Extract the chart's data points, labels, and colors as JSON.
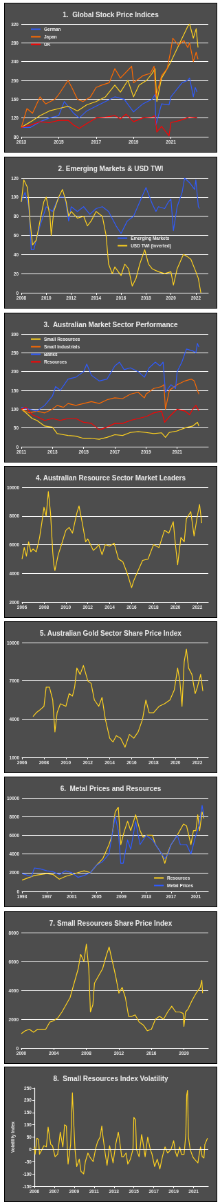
{
  "chart_data": [
    {
      "type": "line",
      "title": "1.  Global Stock Price Indices",
      "xlim": [
        2013,
        2023
      ],
      "xticks": [
        2013,
        2015,
        2017,
        2019,
        2021
      ],
      "ylim": [
        80,
        320
      ],
      "yticks": [
        80,
        120,
        160,
        200,
        240,
        280,
        320
      ],
      "grid": "y",
      "legend": "top left",
      "series": [
        {
          "name": "German",
          "color": "#2f5bff",
          "x": [
            2013,
            2013.5,
            2014,
            2014.5,
            2015,
            2015.3,
            2015.5,
            2015.8,
            2016.1,
            2016.5,
            2017,
            2017.5,
            2018,
            2018.5,
            2019,
            2019.5,
            2020,
            2020.15,
            2020.2,
            2020.5,
            2020.9,
            2021,
            2021.3,
            2021.6,
            2021.9,
            2022,
            2022.2,
            2022.3,
            2022.4
          ],
          "values": [
            100,
            100,
            112,
            120,
            125,
            155,
            145,
            130,
            120,
            135,
            145,
            155,
            165,
            160,
            133,
            150,
            160,
            170,
            105,
            150,
            148,
            165,
            180,
            195,
            200,
            205,
            165,
            185,
            175
          ]
        },
        {
          "color": "#ffd21f",
          "x": [
            2013,
            2013.5,
            2014,
            2014.5,
            2015,
            2015.5,
            2016,
            2016.5,
            2017,
            2017.5,
            2018,
            2018.3,
            2018.7,
            2019,
            2019.3,
            2019.7,
            2020,
            2020.15,
            2020.25,
            2020.5,
            2020.8,
            2021,
            2021.3,
            2021.6,
            2021.9,
            2022,
            2022.2,
            2022.35,
            2022.45
          ],
          "values": [
            100,
            112,
            125,
            135,
            140,
            145,
            135,
            148,
            155,
            165,
            190,
            175,
            200,
            165,
            190,
            200,
            215,
            225,
            155,
            205,
            225,
            240,
            265,
            290,
            315,
            320,
            290,
            310,
            270
          ]
        },
        {
          "name": "Japan",
          "color": "#ff6a00",
          "x": [
            2013,
            2013.3,
            2013.6,
            2014,
            2014.3,
            2014.8,
            2015,
            2015.5,
            2015.7,
            2016,
            2016.3,
            2016.7,
            2017,
            2017.3,
            2017.7,
            2018,
            2018.3,
            2018.9,
            2019,
            2019.5,
            2019.9,
            2020.1,
            2020.2,
            2020.5,
            2020.8,
            2021,
            2021.1,
            2021.4,
            2021.7,
            2021.9,
            2022,
            2022.2,
            2022.35,
            2022.45
          ],
          "values": [
            100,
            140,
            130,
            165,
            150,
            160,
            170,
            200,
            185,
            160,
            155,
            165,
            185,
            190,
            195,
            225,
            205,
            230,
            195,
            210,
            215,
            230,
            165,
            210,
            225,
            265,
            290,
            275,
            285,
            270,
            280,
            240,
            260,
            245
          ]
        },
        {
          "name": "UK",
          "color": "#ff0000",
          "x": [
            2013,
            2013.5,
            2014,
            2014.5,
            2015,
            2015.5,
            2015.8,
            2016.1,
            2016.5,
            2017,
            2017.5,
            2018,
            2018.3,
            2018.6,
            2019,
            2019.5,
            2020,
            2020.15,
            2020.25,
            2020.5,
            2020.9,
            2021,
            2021.5,
            2022,
            2022.4
          ],
          "values": [
            100,
            105,
            112,
            110,
            115,
            115,
            105,
            98,
            108,
            120,
            122,
            125,
            118,
            128,
            112,
            120,
            122,
            125,
            90,
            102,
            82,
            110,
            115,
            122,
            120
          ]
        }
      ]
    },
    {
      "type": "line",
      "title": "2. Emerging Markets & USD TWI",
      "xlim": [
        2008,
        2023
      ],
      "xticks": [
        2008,
        2010,
        2012,
        2014,
        2016,
        2018,
        2020,
        2022
      ],
      "ylim": [
        0,
        120
      ],
      "yticks": [
        0,
        20,
        40,
        60,
        80,
        100,
        120
      ],
      "grid": "y",
      "legend": "right",
      "series": [
        {
          "name": "Emerging Markets",
          "color": "#2f5bff",
          "x": [
            2008,
            2008.3,
            2008.6,
            2008.8,
            2009,
            2009.5,
            2010,
            2010.5,
            2011,
            2011.5,
            2011.8,
            2012,
            2012.5,
            2013,
            2013.5,
            2014,
            2014.5,
            2015,
            2015.6,
            2016,
            2016.5,
            2017,
            2017.5,
            2018,
            2018.5,
            2018.8,
            2019,
            2019.5,
            2019.8,
            2020,
            2020.2,
            2020.5,
            2020.9,
            2021.1,
            2021.5,
            2021.9,
            2022,
            2022.2,
            2022.3
          ],
          "values": [
            95,
            105,
            90,
            45,
            45,
            70,
            90,
            85,
            100,
            100,
            75,
            90,
            85,
            90,
            82,
            88,
            90,
            85,
            70,
            62,
            75,
            80,
            95,
            110,
            93,
            85,
            90,
            88,
            95,
            98,
            65,
            90,
            105,
            120,
            115,
            108,
            118,
            90,
            88
          ]
        },
        {
          "name": "USD TWI (Inverted)",
          "color": "#ffd21f",
          "x": [
            2008,
            2008.2,
            2008.5,
            2008.7,
            2008.9,
            2009.2,
            2009.5,
            2009.8,
            2010,
            2010.3,
            2010.4,
            2010.6,
            2011,
            2011.3,
            2011.6,
            2011.8,
            2012,
            2012.5,
            2013,
            2013.3,
            2013.6,
            2014,
            2014.5,
            2014.8,
            2015,
            2015.3,
            2015.5,
            2016,
            2016.3,
            2016.6,
            2016.9,
            2017.2,
            2017.5,
            2017.9,
            2018.2,
            2018.5,
            2019,
            2019.5,
            2020,
            2020.2,
            2020.5,
            2021,
            2021.3,
            2021.6,
            2022,
            2022.2,
            2022.4
          ],
          "values": [
            95,
            118,
            110,
            75,
            50,
            55,
            75,
            95,
            100,
            80,
            60,
            85,
            100,
            108,
            95,
            80,
            85,
            78,
            80,
            70,
            75,
            85,
            80,
            60,
            30,
            20,
            27,
            18,
            30,
            25,
            7,
            15,
            30,
            45,
            30,
            25,
            22,
            20,
            22,
            8,
            25,
            40,
            38,
            35,
            22,
            15,
            0
          ]
        }
      ]
    },
    {
      "type": "line",
      "title": "3.  Australian Market Sector Performance",
      "xlim": [
        2011,
        2023
      ],
      "xticks": [
        2011,
        2013,
        2015,
        2017,
        2019,
        2021
      ],
      "ylim": [
        0,
        300
      ],
      "yticks": [
        0,
        50,
        100,
        150,
        200,
        250,
        300
      ],
      "grid": "y",
      "legend": "top left",
      "series": [
        {
          "name": "Small Resources",
          "color": "#ffd21f",
          "x": [
            2011,
            2011.3,
            2011.7,
            2012,
            2012.5,
            2013,
            2013.3,
            2013.7,
            2014,
            2014.5,
            2015,
            2015.5,
            2016,
            2016.5,
            2017,
            2017.5,
            2018,
            2018.5,
            2019,
            2019.5,
            2020,
            2020.25,
            2020.5,
            2021,
            2021.5,
            2022,
            2022.3,
            2022.4
          ],
          "values": [
            100,
            90,
            75,
            70,
            55,
            52,
            35,
            32,
            30,
            28,
            22,
            22,
            20,
            25,
            32,
            30,
            38,
            40,
            38,
            35,
            37,
            25,
            38,
            42,
            50,
            55,
            65,
            55
          ]
        },
        {
          "name": "Small Industrials",
          "color": "#ff6a00",
          "x": [
            2011,
            2011.5,
            2012,
            2012.5,
            2013,
            2013.3,
            2013.7,
            2014,
            2014.5,
            2015,
            2015.5,
            2016,
            2016.5,
            2017,
            2017.5,
            2018,
            2018.5,
            2018.9,
            2019,
            2019.5,
            2020,
            2020.15,
            2020.25,
            2020.5,
            2021,
            2021.5,
            2021.9,
            2022.1,
            2022.3,
            2022.4
          ],
          "values": [
            100,
            90,
            95,
            90,
            100,
            110,
            105,
            115,
            110,
            115,
            120,
            115,
            125,
            130,
            128,
            140,
            145,
            130,
            140,
            155,
            160,
            165,
            100,
            150,
            165,
            175,
            180,
            175,
            150,
            140
          ]
        },
        {
          "name": "Banks",
          "color": "#2f5bff",
          "x": [
            2011,
            2011.5,
            2012,
            2012.5,
            2013,
            2013.2,
            2013.5,
            2014,
            2014.5,
            2015,
            2015.2,
            2015.5,
            2016,
            2016.5,
            2017,
            2017.3,
            2017.6,
            2018,
            2018.5,
            2018.9,
            2019.2,
            2019.6,
            2019.9,
            2020.1,
            2020.25,
            2020.6,
            2020.9,
            2021,
            2021.3,
            2021.6,
            2022,
            2022.2,
            2022.3,
            2022.4
          ],
          "values": [
            105,
            100,
            95,
            110,
            135,
            160,
            150,
            180,
            185,
            200,
            220,
            190,
            175,
            180,
            215,
            225,
            205,
            210,
            200,
            185,
            210,
            225,
            215,
            225,
            145,
            165,
            155,
            200,
            225,
            260,
            255,
            250,
            275,
            265
          ]
        },
        {
          "name": "Resources",
          "color": "#ff0000",
          "x": [
            2011,
            2011.3,
            2011.7,
            2012,
            2012.5,
            2013,
            2013.5,
            2014,
            2014.5,
            2015,
            2015.5,
            2016,
            2016.5,
            2017,
            2017.5,
            2018,
            2018.5,
            2019,
            2019.5,
            2020,
            2020.2,
            2020.5,
            2021,
            2021.5,
            2021.8,
            2022,
            2022.2,
            2022.4
          ],
          "values": [
            100,
            105,
            85,
            80,
            70,
            75,
            70,
            75,
            75,
            65,
            62,
            45,
            52,
            62,
            62,
            70,
            75,
            80,
            90,
            95,
            65,
            80,
            100,
            95,
            85,
            100,
            110,
            95
          ]
        }
      ]
    },
    {
      "type": "line",
      "title": "4. Australian Resource Sector Market Leaders",
      "xlim": [
        2006,
        2023
      ],
      "xticks": [
        2006,
        2008,
        2010,
        2012,
        2014,
        2016,
        2018,
        2020,
        2022
      ],
      "ylim": [
        2000,
        10000
      ],
      "yticks": [
        2000,
        4000,
        6000,
        8000,
        10000
      ],
      "grid": "y",
      "series": [
        {
          "color": "#ffd21f",
          "x": [
            2006,
            2006.2,
            2006.4,
            2006.6,
            2006.8,
            2007,
            2007.3,
            2007.6,
            2007.8,
            2008,
            2008.2,
            2008.4,
            2008.6,
            2008.8,
            2008.9,
            2009,
            2009.3,
            2009.6,
            2010,
            2010.3,
            2010.6,
            2011,
            2011.2,
            2011.5,
            2011.8,
            2012,
            2012.5,
            2012.8,
            2013,
            2013.3,
            2013.6,
            2014,
            2014.4,
            2014.8,
            2015.2,
            2015.6,
            2016,
            2016.2,
            2016.6,
            2017,
            2017.5,
            2018,
            2018.5,
            2019,
            2019.4,
            2019.8,
            2020,
            2020.2,
            2020.5,
            2020.8,
            2021,
            2021.4,
            2021.7,
            2022,
            2022.2,
            2022.4
          ],
          "values": [
            5000,
            5800,
            5200,
            6200,
            5500,
            5700,
            5500,
            6500,
            7500,
            8600,
            8000,
            9700,
            8200,
            5500,
            4600,
            4200,
            5300,
            6000,
            7000,
            7200,
            6800,
            8200,
            8700,
            7500,
            6200,
            6400,
            5600,
            5800,
            6000,
            5300,
            6000,
            5900,
            6100,
            5000,
            4800,
            4000,
            3000,
            3500,
            4200,
            4900,
            5000,
            6000,
            5800,
            7000,
            6800,
            7600,
            6000,
            4600,
            6500,
            6200,
            7800,
            8300,
            6600,
            8000,
            8800,
            7500
          ]
        }
      ]
    },
    {
      "type": "line",
      "title": "5. Australian Gold Sector Share Price Index",
      "xlim": [
        2006,
        2023
      ],
      "xticks": [
        2006,
        2008,
        2010,
        2012,
        2014,
        2016,
        2018,
        2020,
        2022
      ],
      "ylim": [
        1000,
        10000
      ],
      "yticks": [
        1000,
        4000,
        7000,
        10000
      ],
      "grid": "y",
      "series": [
        {
          "color": "#ffd21f",
          "x": [
            2007,
            2007.3,
            2007.6,
            2008,
            2008.2,
            2008.5,
            2008.8,
            2009,
            2009.2,
            2009.5,
            2010,
            2010.3,
            2010.6,
            2010.8,
            2011,
            2011.3,
            2011.6,
            2012,
            2012.3,
            2012.6,
            2013,
            2013.3,
            2013.6,
            2014,
            2014.3,
            2014.6,
            2015,
            2015.4,
            2015.8,
            2016.2,
            2016.6,
            2017,
            2017.3,
            2017.6,
            2018,
            2018.5,
            2019,
            2019.5,
            2019.9,
            2020.2,
            2020.4,
            2020.6,
            2020.8,
            2021,
            2021.2,
            2021.5,
            2021.8,
            2022,
            2022.3,
            2022.5
          ],
          "values": [
            4200,
            4500,
            4700,
            5000,
            6500,
            6500,
            5500,
            3000,
            4500,
            5200,
            5000,
            6000,
            5800,
            6500,
            8000,
            7500,
            8200,
            7000,
            6800,
            5500,
            5000,
            5700,
            4000,
            2500,
            2200,
            2700,
            2500,
            1800,
            2800,
            2500,
            3000,
            4000,
            5500,
            4500,
            4500,
            5000,
            5200,
            5500,
            6300,
            8000,
            7000,
            5000,
            8500,
            9500,
            8000,
            7500,
            6000,
            6500,
            7500,
            6200
          ]
        }
      ]
    },
    {
      "type": "line",
      "title": "6.  Metal Prices and Resources",
      "xlim": [
        1993,
        2023
      ],
      "xticks": [
        1993,
        1997,
        2001,
        2005,
        2009,
        2013,
        2017,
        2021
      ],
      "ylim": [
        0,
        10000
      ],
      "yticks": [
        0,
        2000,
        4000,
        6000,
        8000,
        10000
      ],
      "grid": "y",
      "legend": "bottom right",
      "series": [
        {
          "name": "Resources",
          "color": "#ffd21f",
          "x": [
            1993,
            1995,
            1997,
            1998,
            1999,
            2000,
            2001,
            2002,
            2003,
            2004,
            2005,
            2006,
            2007,
            2007.5,
            2008,
            2008.5,
            2008.9,
            2009.5,
            2010,
            2010.5,
            2011.3,
            2012,
            2012.5,
            2013,
            2014,
            2014.5,
            2015.5,
            2016,
            2016.5,
            2017,
            2018,
            2019,
            2019.5,
            2020.2,
            2020.6,
            2021,
            2021.3,
            2021.6,
            2022,
            2022.3
          ],
          "values": [
            1200,
            1700,
            1900,
            1800,
            1300,
            1600,
            1800,
            2000,
            2200,
            2000,
            2800,
            3500,
            5000,
            6000,
            8500,
            9000,
            5000,
            6500,
            7500,
            6500,
            8200,
            6500,
            5800,
            6000,
            6000,
            5000,
            4000,
            3000,
            4200,
            5000,
            6000,
            7200,
            7000,
            5000,
            6500,
            6500,
            8200,
            6500,
            8500,
            7800
          ]
        },
        {
          "name": "Metal Prices",
          "color": "#2f5bff",
          "x": [
            1993,
            1994.5,
            1995,
            1996,
            1997,
            1998,
            1999,
            2000,
            2001,
            2002,
            2003,
            2004,
            2005,
            2006,
            2007,
            2007.5,
            2008,
            2008.5,
            2008.9,
            2009.3,
            2010,
            2010.5,
            2011.3,
            2012,
            2013,
            2014,
            2015,
            2016,
            2016.5,
            2017,
            2018,
            2018.5,
            2019.5,
            2020.2,
            2020.6,
            2021,
            2021.5,
            2022,
            2022.3
          ],
          "values": [
            1900,
            1600,
            2500,
            2400,
            2200,
            2100,
            1800,
            2200,
            2000,
            1500,
            1700,
            2000,
            2800,
            3200,
            4000,
            6000,
            8000,
            6500,
            3000,
            3000,
            5500,
            4500,
            7500,
            5000,
            6000,
            5500,
            4500,
            3500,
            4000,
            5000,
            6000,
            5000,
            5000,
            4000,
            5000,
            6000,
            7000,
            9200,
            8000
          ]
        }
      ]
    },
    {
      "type": "line",
      "title": "7. Small Resources Share Price Index",
      "xlim": [
        2000,
        2023
      ],
      "xticks": [
        2000,
        2004,
        2008,
        2012,
        2016,
        2020
      ],
      "ylim": [
        0,
        8000
      ],
      "yticks": [
        0,
        2000,
        4000,
        6000,
        8000
      ],
      "grid": "y",
      "series": [
        {
          "color": "#ffd21f",
          "x": [
            2000,
            2000.5,
            2001,
            2001.5,
            2002,
            2003,
            2003.5,
            2004,
            2004.5,
            2005,
            2005.5,
            2006,
            2006.5,
            2007,
            2007.3,
            2007.7,
            2008,
            2008.3,
            2008.5,
            2008.8,
            2009,
            2009.5,
            2010,
            2010.5,
            2010.8,
            2011.2,
            2011.6,
            2012,
            2012.4,
            2012.8,
            2013.2,
            2013.6,
            2014,
            2014.5,
            2015,
            2015.5,
            2016,
            2016.5,
            2017,
            2017.5,
            2018,
            2018.5,
            2019,
            2019.5,
            2019.9,
            2020,
            2020.2,
            2020.5,
            2021,
            2021.5,
            2022,
            2022.2,
            2022.3
          ],
          "values": [
            1000,
            1200,
            1300,
            1100,
            1300,
            1300,
            1800,
            1900,
            2100,
            2500,
            3000,
            3500,
            4500,
            5500,
            6500,
            6000,
            7200,
            5500,
            2500,
            3000,
            4500,
            5000,
            5500,
            6500,
            7000,
            6000,
            5000,
            3800,
            4200,
            3500,
            2200,
            2200,
            2300,
            1800,
            1600,
            1200,
            1300,
            2000,
            2200,
            2000,
            2500,
            2900,
            2500,
            2500,
            2400,
            1500,
            2500,
            2700,
            3300,
            3800,
            4200,
            4700,
            3800
          ]
        }
      ]
    },
    {
      "type": "line",
      "title": "8.  Small Resources Index Volatility",
      "ylabel": "Volatility Index",
      "xlim": [
        "2006-01",
        "2022-10"
      ],
      "xticks": [
        {
          "value": "2006-01",
          "label": "2006"
        },
        {
          "value": "2007-12",
          "label": "2007"
        },
        {
          "value": "2009-11",
          "label": "2009"
        },
        {
          "value": "2011-10",
          "label": "2011"
        },
        {
          "value": "2013-09",
          "label": "2013"
        },
        {
          "value": "2015-08",
          "label": "2015"
        },
        {
          "value": "2017-07",
          "label": "2017"
        },
        {
          "value": "2019-06",
          "label": "2019"
        },
        {
          "value": "2021-05",
          "label": "2021"
        }
      ],
      "ylim": [
        -150,
        250
      ],
      "yticks": [
        -150,
        -100,
        -50,
        0,
        50,
        100,
        150,
        200,
        250
      ],
      "grid": false,
      "ref_lines": [
        {
          "axis": "y",
          "value": 0
        }
      ],
      "series": [
        {
          "color": "#ffd21f",
          "x": [
            "2006-01",
            "2006-02",
            "2006-04",
            "2006-06",
            "2006-07",
            "2006-10",
            "2006-12",
            "2007-03",
            "2007-05",
            "2007-08",
            "2007-10",
            "2008-01",
            "2008-04",
            "2008-07",
            "2008-10",
            "2008-12",
            "2009-02",
            "2009-04",
            "2009-07",
            "2009-09",
            "2009-10",
            "2009-12",
            "2010-02",
            "2010-05",
            "2010-07",
            "2010-10",
            "2010-12",
            "2011-03",
            "2011-05",
            "2011-09",
            "2011-12",
            "2012-02",
            "2012-05",
            "2012-07",
            "2012-08",
            "2012-11",
            "2013-01",
            "2013-04",
            "2013-06",
            "2013-08",
            "2013-11",
            "2014-02",
            "2014-03",
            "2014-06",
            "2014-08",
            "2014-11",
            "2015-01",
            "2015-04",
            "2015-07",
            "2015-08",
            "2015-10",
            "2015-11",
            "2016-02",
            "2016-05",
            "2016-06",
            "2016-09",
            "2016-12",
            "2017-03",
            "2017-05",
            "2017-08",
            "2017-11",
            "2018-02",
            "2018-05",
            "2018-08",
            "2018-11",
            "2019-03",
            "2019-06",
            "2019-08",
            "2019-10",
            "2020-01",
            "2020-03",
            "2020-06",
            "2020-08",
            "2020-09",
            "2020-10",
            "2020-11",
            "2021-01",
            "2021-04",
            "2021-06",
            "2021-10",
            "2021-11",
            "2022-01",
            "2022-03",
            "2022-05",
            "2022-06",
            "2022-09"
          ],
          "values": [
            10,
            -20,
            45,
            40,
            -20,
            0,
            15,
            10,
            90,
            20,
            15,
            -30,
            -20,
            70,
            10,
            100,
            95,
            -60,
            20,
            230,
            150,
            0,
            -70,
            -40,
            -90,
            -100,
            -50,
            -15,
            -30,
            -50,
            5,
            30,
            50,
            95,
            60,
            -20,
            -65,
            15,
            -20,
            -55,
            20,
            70,
            50,
            -30,
            -30,
            -15,
            -60,
            -40,
            0,
            130,
            120,
            0,
            -30,
            60,
            40,
            -30,
            50,
            0,
            -20,
            -70,
            -40,
            -80,
            -30,
            10,
            -15,
            0,
            35,
            -10,
            -30,
            10,
            -20,
            -20,
            60,
            220,
            240,
            50,
            0,
            -30,
            -40,
            -55,
            -30,
            10,
            -30,
            -35,
            20,
            45
          ]
        }
      ]
    }
  ]
}
